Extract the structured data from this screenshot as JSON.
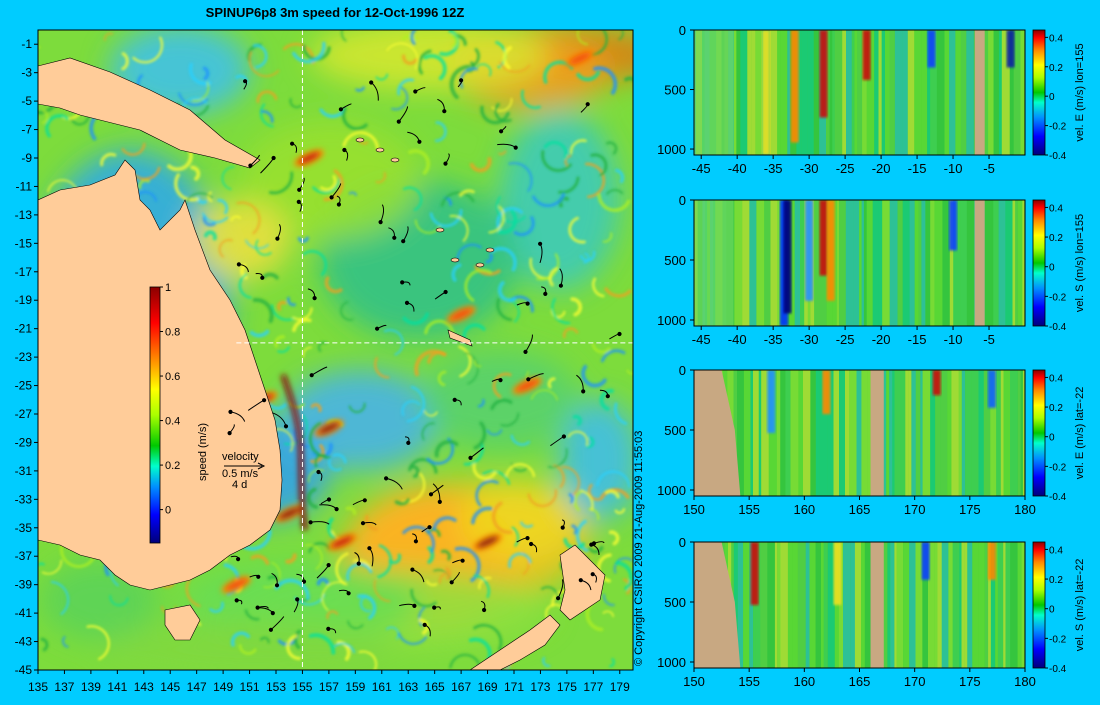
{
  "page": {
    "title": "SPINUP6p8 3m speed for 12-Oct-1996 12Z",
    "copyright": "© Copyright CSIRO 2009   21-Aug-2009 11:55:03"
  },
  "colors": {
    "background": "#00ccff",
    "land": "#ffcc99",
    "mask_land": "#c8a882",
    "section_line": "#ffffff",
    "colormap": [
      "#00007a",
      "#0000ff",
      "#0090ff",
      "#00ffcc",
      "#00c800",
      "#ffff00",
      "#ff8800",
      "#ff0000",
      "#8b0000"
    ]
  },
  "chart_data": [
    {
      "id": "speed-map",
      "type": "heatmap",
      "title": "SPINUP6p8 3m speed for 12-Oct-1996 12Z",
      "x_ticks": [
        "135",
        "137",
        "139",
        "141",
        "143",
        "145",
        "147",
        "149",
        "151",
        "153",
        "155",
        "157",
        "159",
        "161",
        "163",
        "165",
        "167",
        "169",
        "171",
        "173",
        "175",
        "177",
        "179"
      ],
      "y_ticks": [
        "-1",
        "-3",
        "-5",
        "-7",
        "-9",
        "-11",
        "-13",
        "-15",
        "-17",
        "-19",
        "-21",
        "-23",
        "-25",
        "-27",
        "-29",
        "-31",
        "-33",
        "-35",
        "-37",
        "-39",
        "-41",
        "-43",
        "-45"
      ],
      "xlim": [
        135,
        180
      ],
      "ylim": [
        -45,
        0
      ],
      "section_lon": 155,
      "section_lat": -22,
      "colorbar": {
        "label": "speed (m/s)",
        "ticks": [
          "0",
          "0.2",
          "0.4",
          "0.6",
          "0.8",
          "1"
        ],
        "range": [
          -0.15,
          1.0
        ]
      },
      "velocity_key": {
        "label": "velocity",
        "speed": "0.5 m/s",
        "duration": "4 d"
      },
      "features": [
        {
          "lon": 157,
          "lat": -28,
          "speed": 1.0
        },
        {
          "lon": 154,
          "lat": -34,
          "speed": 1.0
        },
        {
          "lon": 158,
          "lat": -36,
          "speed": 0.9
        },
        {
          "lon": 169,
          "lat": -36,
          "speed": 1.0
        },
        {
          "lon": 152,
          "lat": -26,
          "speed": 0.9
        },
        {
          "lon": 155.5,
          "lat": -9,
          "speed": 0.85
        },
        {
          "lon": 150,
          "lat": -39,
          "speed": 0.8
        },
        {
          "lon": 176,
          "lat": -2,
          "speed": 0.7
        },
        {
          "lon": 172,
          "lat": -25,
          "speed": 0.8
        },
        {
          "lon": 167,
          "lat": -20,
          "speed": 0.8
        }
      ]
    },
    {
      "id": "vel-e-lon155",
      "type": "heatmap",
      "xlabel": "",
      "ylabel": "vel. E (m/s) lon=155",
      "x_ticks": [
        "-45",
        "-40",
        "-35",
        "-30",
        "-25",
        "-20",
        "-15",
        "-10",
        "-5"
      ],
      "y_ticks": [
        "0",
        "500",
        "1000"
      ],
      "xlim": [
        -46,
        0
      ],
      "ylim": [
        1050,
        0
      ],
      "colorbar_ticks": [
        "0.4",
        "0.2",
        "0",
        "-0.2",
        "-0.4"
      ],
      "range": [
        -0.4,
        0.45
      ]
    },
    {
      "id": "vel-s-lon155",
      "type": "heatmap",
      "ylabel": "vel. S (m/s) lon=155",
      "x_ticks": [
        "-45",
        "-40",
        "-35",
        "-30",
        "-25",
        "-20",
        "-15",
        "-10",
        "-5"
      ],
      "y_ticks": [
        "0",
        "500",
        "1000"
      ],
      "xlim": [
        -46,
        0
      ],
      "ylim": [
        1050,
        0
      ],
      "colorbar_ticks": [
        "0.4",
        "0.2",
        "0",
        "-0.2",
        "-0.4"
      ],
      "range": [
        -0.4,
        0.45
      ]
    },
    {
      "id": "vel-e-lat-22",
      "type": "heatmap",
      "ylabel": "vel. E (m/s) lat=-22",
      "x_ticks": [
        "150",
        "155",
        "160",
        "165",
        "170",
        "175",
        "180"
      ],
      "y_ticks": [
        "0",
        "500",
        "1000"
      ],
      "xlim": [
        150,
        180
      ],
      "ylim": [
        1050,
        0
      ],
      "colorbar_ticks": [
        "0.4",
        "0.2",
        "0",
        "-0.2",
        "-0.4"
      ],
      "range": [
        -0.4,
        0.45
      ]
    },
    {
      "id": "vel-s-lat-22",
      "type": "heatmap",
      "ylabel": "vel. S (m/s) lat=-22",
      "x_ticks": [
        "150",
        "155",
        "160",
        "165",
        "170",
        "175",
        "180"
      ],
      "y_ticks": [
        "0",
        "500",
        "1000"
      ],
      "xlim": [
        150,
        180
      ],
      "ylim": [
        1050,
        0
      ],
      "colorbar_ticks": [
        "0.4",
        "0.2",
        "0",
        "-0.2",
        "-0.4"
      ],
      "range": [
        -0.4,
        0.45
      ]
    }
  ]
}
